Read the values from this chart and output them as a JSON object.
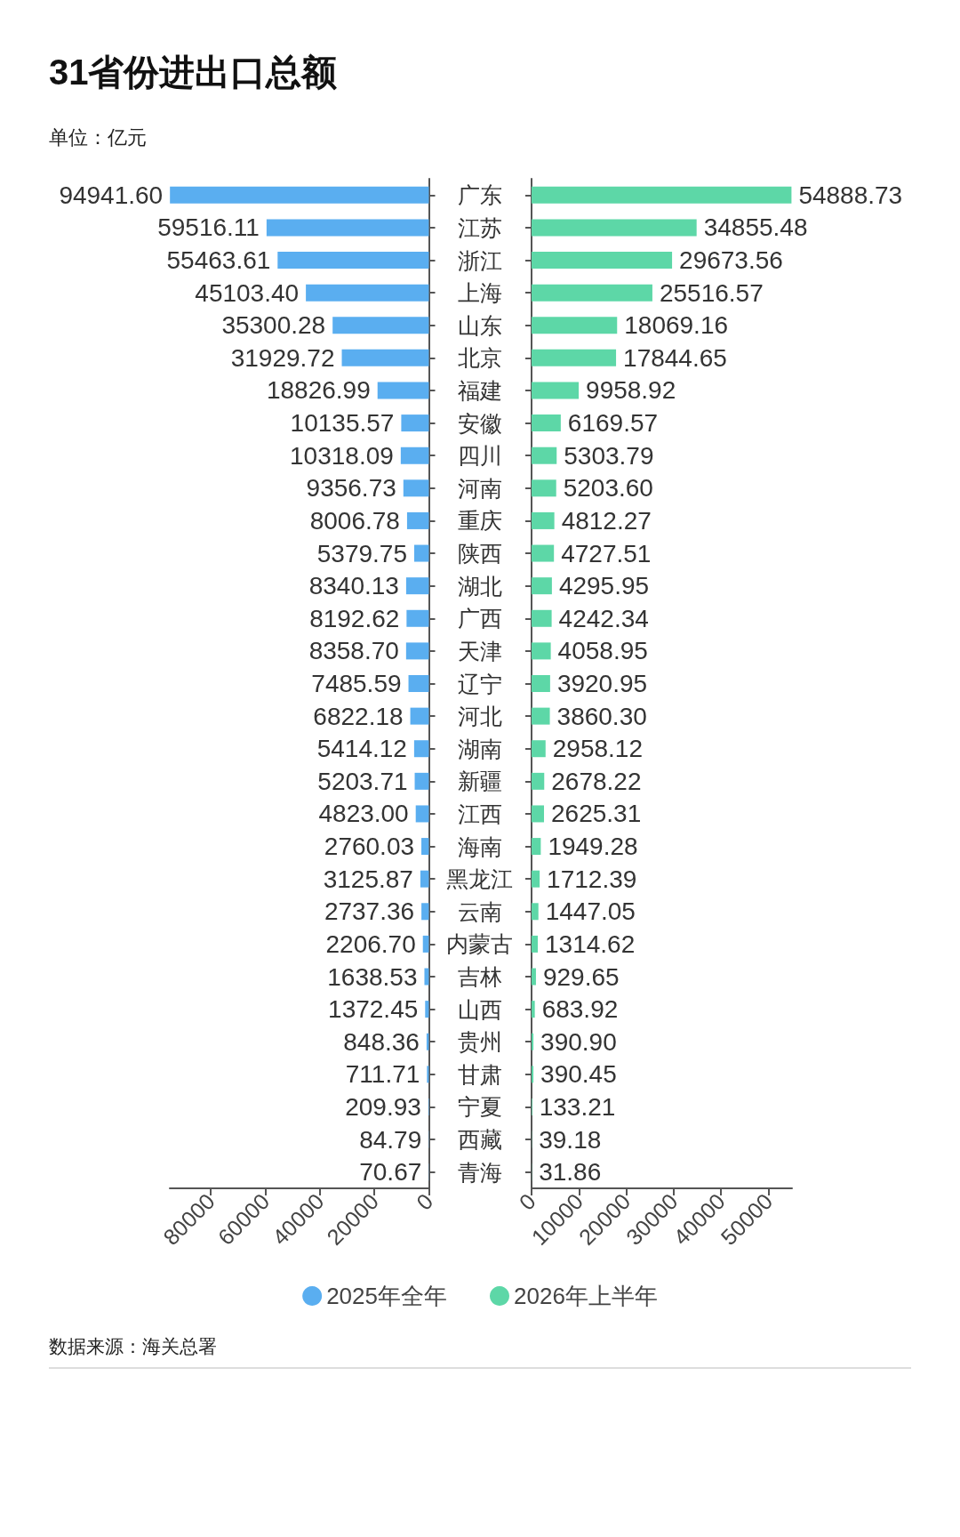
{
  "chart_data": [
    {
      "type": "bar",
      "orientation": "horizontal",
      "title": "31省份进出口总额",
      "subtitle": "单位：亿元",
      "annotations": [
        "数据来源：海关总署"
      ],
      "categories": [
        "广东",
        "江苏",
        "浙江",
        "上海",
        "山东",
        "北京",
        "福建",
        "安徽",
        "四川",
        "河南",
        "重庆",
        "陕西",
        "湖北",
        "广西",
        "天津",
        "辽宁",
        "河北",
        "湖南",
        "新疆",
        "江西",
        "海南",
        "黑龙江",
        "云南",
        "内蒙古",
        "吉林",
        "山西",
        "贵州",
        "甘肃",
        "宁夏",
        "西藏",
        "青海"
      ],
      "series": [
        {
          "name": "2025年全年",
          "color": "#5aaef0",
          "values": [
            94941.6,
            59516.11,
            55463.61,
            45103.4,
            35300.28,
            31929.72,
            18826.99,
            10135.57,
            10318.09,
            9356.73,
            8006.78,
            5379.75,
            8340.13,
            8192.62,
            8358.7,
            7485.59,
            6822.18,
            5414.12,
            5203.71,
            4823.0,
            2760.03,
            3125.87,
            2737.36,
            2206.7,
            1638.53,
            1372.45,
            848.36,
            711.71,
            209.93,
            84.79,
            70.67
          ],
          "value_labels": [
            "94941.60",
            "59516.11",
            "55463.61",
            "45103.40",
            "35300.28",
            "31929.72",
            "18826.99",
            "10135.57",
            "10318.09",
            "9356.73",
            "8006.78",
            "5379.75",
            "8340.13",
            "8192.62",
            "8358.70",
            "7485.59",
            "6822.18",
            "5414.12",
            "5203.71",
            "4823.00",
            "2760.03",
            "3125.87",
            "2737.36",
            "2206.70",
            "1638.53",
            "1372.45",
            "848.36",
            "711.71",
            "209.93",
            "84.79",
            "70.67"
          ]
        }
      ],
      "xlim": [
        95000,
        0
      ],
      "xticks": [
        80000,
        60000,
        40000,
        20000,
        0
      ],
      "legend": "bottom"
    },
    {
      "type": "bar",
      "orientation": "horizontal",
      "categories": [
        null,
        null,
        null,
        null,
        null,
        null,
        null,
        null,
        null,
        null,
        null,
        null,
        null,
        null,
        null,
        null,
        null,
        null,
        null,
        null,
        null,
        null,
        null,
        null,
        null,
        null,
        null,
        null,
        null,
        null,
        null
      ],
      "series": [
        {
          "name": "2026年上半年",
          "color": "#5dd7a7",
          "values": [
            54888.73,
            34855.48,
            29673.56,
            25516.57,
            18069.16,
            17844.65,
            9958.92,
            6169.57,
            5303.79,
            5203.6,
            4812.27,
            4727.51,
            4295.95,
            4242.34,
            4058.95,
            3920.95,
            3860.3,
            2958.12,
            2678.22,
            2625.31,
            1949.28,
            1712.39,
            1447.05,
            1314.62,
            929.65,
            683.92,
            390.9,
            390.45,
            133.21,
            39.18,
            31.86
          ],
          "value_labels": [
            "54888.73",
            "34855.48",
            "29673.56",
            "25516.57",
            "18069.16",
            "17844.65",
            "9958.92",
            "6169.57",
            "5303.79",
            "5203.60",
            "4812.27",
            "4727.51",
            "4295.95",
            "4242.34",
            "4058.95",
            "3920.95",
            "3860.30",
            "2958.12",
            "2678.22",
            "2625.31",
            "1949.28",
            "1712.39",
            "1447.05",
            "1314.62",
            "929.65",
            "683.92",
            "390.90",
            "390.45",
            "133.21",
            "39.18",
            "31.86"
          ]
        }
      ],
      "xlim": [
        0,
        55000
      ],
      "xticks": [
        0,
        10000,
        20000,
        30000,
        40000,
        50000
      ],
      "legend": "bottom",
      "tick_labels": "x"
    }
  ]
}
